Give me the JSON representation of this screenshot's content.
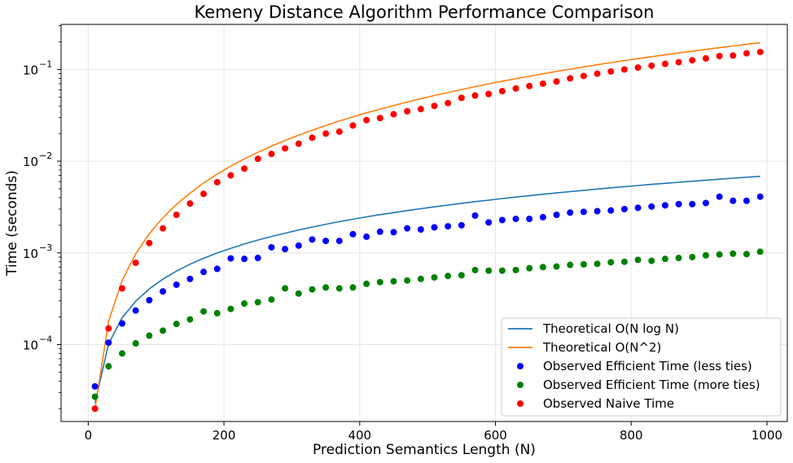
{
  "chart_data": {
    "type": "line",
    "title": "Kemeny Distance Algorithm Performance Comparison",
    "xlabel": "Prediction Semantics Length (N)",
    "ylabel": "Time (seconds)",
    "xlim": [
      -40,
      1030
    ],
    "ylim": [
      1.45e-05,
      0.31
    ],
    "yscale": "log",
    "grid": true,
    "legend_position": "lower right",
    "x_ticks": [
      0,
      200,
      400,
      600,
      800,
      1000
    ],
    "x_tick_labels": [
      "0",
      "200",
      "400",
      "600",
      "800",
      "1000"
    ],
    "y_ticks": [
      0.0001,
      0.001,
      0.01,
      0.1
    ],
    "y_tick_labels": [
      {
        "base": "10",
        "exp": "−4"
      },
      {
        "base": "10",
        "exp": "−3"
      },
      {
        "base": "10",
        "exp": "−2"
      },
      {
        "base": "10",
        "exp": "−1"
      }
    ],
    "x": [
      10,
      30,
      50,
      70,
      90,
      110,
      130,
      150,
      170,
      190,
      210,
      230,
      250,
      270,
      290,
      310,
      330,
      350,
      370,
      390,
      410,
      430,
      450,
      470,
      490,
      510,
      530,
      550,
      570,
      590,
      610,
      630,
      650,
      670,
      690,
      710,
      730,
      750,
      770,
      790,
      810,
      830,
      850,
      870,
      890,
      910,
      930,
      950,
      970,
      990
    ],
    "series": [
      {
        "name": "Theoretical O(N log N)",
        "kind": "line",
        "color": "#1f77b4",
        "values": [
          2.3e-05,
          0.000102,
          0.000196,
          0.000297,
          0.000405,
          0.000517,
          0.000633,
          0.000752,
          0.000873,
          0.000997,
          0.00112,
          0.00125,
          0.00138,
          0.00151,
          0.00164,
          0.00178,
          0.00191,
          0.00205,
          0.00219,
          0.00233,
          0.00247,
          0.00261,
          0.00275,
          0.00289,
          0.00303,
          0.00318,
          0.00332,
          0.00347,
          0.00362,
          0.00376,
          0.00391,
          0.00406,
          0.00421,
          0.00436,
          0.00451,
          0.00466,
          0.00481,
          0.00497,
          0.00512,
          0.00527,
          0.00543,
          0.00558,
          0.00574,
          0.00589,
          0.00605,
          0.00621,
          0.00636,
          0.00652,
          0.00668,
          0.00684
        ]
      },
      {
        "name": "Theoretical O(N^2)",
        "kind": "line",
        "color": "#ff7f0e",
        "values": [
          2e-05,
          0.00018,
          0.0005,
          0.00098,
          0.00162,
          0.00242,
          0.00338,
          0.0045,
          0.00578,
          0.00722,
          0.00882,
          0.01058,
          0.0125,
          0.01458,
          0.01682,
          0.01922,
          0.02178,
          0.0245,
          0.02738,
          0.03042,
          0.03362,
          0.03698,
          0.0405,
          0.04418,
          0.04802,
          0.05202,
          0.05618,
          0.0605,
          0.06498,
          0.06962,
          0.07442,
          0.07938,
          0.0845,
          0.08978,
          0.09522,
          0.10082,
          0.10658,
          0.1125,
          0.11858,
          0.12482,
          0.13122,
          0.13778,
          0.1445,
          0.15138,
          0.15842,
          0.16562,
          0.17298,
          0.1805,
          0.18818,
          0.19602
        ]
      },
      {
        "name": "Observed Efficient Time (less ties)",
        "kind": "scatter",
        "color": "#0000ff",
        "values": [
          3.5e-05,
          0.000105,
          0.00017,
          0.000235,
          0.000305,
          0.00038,
          0.00045,
          0.00052,
          0.00062,
          0.00067,
          0.00087,
          0.00086,
          0.00088,
          0.00115,
          0.0011,
          0.0012,
          0.0014,
          0.00135,
          0.00135,
          0.0016,
          0.0015,
          0.0017,
          0.00168,
          0.00185,
          0.0018,
          0.0019,
          0.00195,
          0.002,
          0.00255,
          0.00215,
          0.00228,
          0.00235,
          0.00235,
          0.00245,
          0.0026,
          0.00275,
          0.0028,
          0.00285,
          0.0029,
          0.003,
          0.0031,
          0.0032,
          0.0033,
          0.0034,
          0.0034,
          0.0035,
          0.0041,
          0.0037,
          0.0037,
          0.0041
        ]
      },
      {
        "name": "Observed Efficient Time (more ties)",
        "kind": "scatter",
        "color": "#008000",
        "values": [
          2.7e-05,
          5.8e-05,
          8e-05,
          0.000103,
          0.000125,
          0.000142,
          0.000168,
          0.000188,
          0.00023,
          0.00022,
          0.000245,
          0.00028,
          0.00029,
          0.00031,
          0.00041,
          0.00036,
          0.0004,
          0.00042,
          0.00041,
          0.00042,
          0.00046,
          0.00048,
          0.00049,
          0.0005,
          0.00052,
          0.00054,
          0.00056,
          0.00057,
          0.00065,
          0.00064,
          0.00064,
          0.00065,
          0.00068,
          0.0007,
          0.00071,
          0.00074,
          0.00075,
          0.00076,
          0.00079,
          0.0008,
          0.00084,
          0.00082,
          0.00086,
          0.00088,
          0.0009,
          0.00094,
          0.00096,
          0.00098,
          0.00097,
          0.00103
        ]
      },
      {
        "name": "Observed Naive Time",
        "kind": "scatter",
        "color": "#ff0000",
        "values": [
          2e-05,
          0.00015,
          0.00041,
          0.00078,
          0.00128,
          0.00185,
          0.0026,
          0.00345,
          0.0044,
          0.0059,
          0.007,
          0.0083,
          0.0106,
          0.012,
          0.0138,
          0.0155,
          0.018,
          0.02,
          0.021,
          0.0245,
          0.028,
          0.0295,
          0.0325,
          0.035,
          0.037,
          0.04,
          0.043,
          0.049,
          0.052,
          0.054,
          0.058,
          0.062,
          0.066,
          0.07,
          0.074,
          0.08,
          0.085,
          0.09,
          0.095,
          0.1,
          0.105,
          0.11,
          0.115,
          0.12,
          0.126,
          0.132,
          0.14,
          0.142,
          0.15,
          0.155
        ]
      }
    ]
  }
}
